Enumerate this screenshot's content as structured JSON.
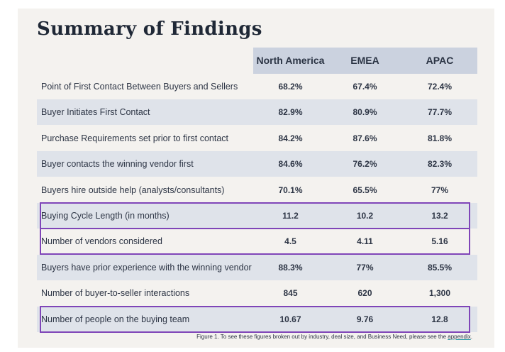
{
  "title": "Summary of Findings",
  "columns": [
    "North America",
    "EMEA",
    "APAC"
  ],
  "rows": [
    {
      "label": "Point of First Contact Between Buyers and Sellers",
      "values": [
        "68.2%",
        "67.4%",
        "72.4%"
      ],
      "shaded": false,
      "highlighted": false
    },
    {
      "label": "Buyer Initiates First Contact",
      "values": [
        "82.9%",
        "80.9%",
        "77.7%"
      ],
      "shaded": true,
      "highlighted": false
    },
    {
      "label": "Purchase Requirements set prior to first contact",
      "values": [
        "84.2%",
        "87.6%",
        "81.8%"
      ],
      "shaded": false,
      "highlighted": false
    },
    {
      "label": "Buyer contacts the winning vendor first",
      "values": [
        "84.6%",
        "76.2%",
        "82.3%"
      ],
      "shaded": true,
      "highlighted": false
    },
    {
      "label": "Buyers hire outside help (analysts/consultants)",
      "values": [
        "70.1%",
        "65.5%",
        "77%"
      ],
      "shaded": false,
      "highlighted": false
    },
    {
      "label": "Buying Cycle Length (in months)",
      "values": [
        "11.2",
        "10.2",
        "13.2"
      ],
      "shaded": true,
      "highlighted": true
    },
    {
      "label": "Number of vendors considered",
      "values": [
        "4.5",
        "4.11",
        "5.16"
      ],
      "shaded": false,
      "highlighted": true
    },
    {
      "label": "Buyers have prior experience with the winning vendor",
      "values": [
        "88.3%",
        "77%",
        "85.5%"
      ],
      "shaded": true,
      "highlighted": false
    },
    {
      "label": "Number of buyer-to-seller interactions",
      "values": [
        "845",
        "620",
        "1,300"
      ],
      "shaded": false,
      "highlighted": false
    },
    {
      "label": "Number of people on the buying team",
      "values": [
        "10.67",
        "9.76",
        "12.8"
      ],
      "shaded": true,
      "highlighted": true
    }
  ],
  "caption": {
    "text": "Figure 1. To see these figures broken out by industry, deal size, and Business Need, please see the ",
    "link": "appendix",
    "end": "."
  },
  "colors": {
    "title": "#1f2836",
    "header_bg": "#cbd2df",
    "row_shade": "#dfe3ea",
    "highlight_border": "#7f45b8",
    "card_bg": "#f4f2ef"
  }
}
